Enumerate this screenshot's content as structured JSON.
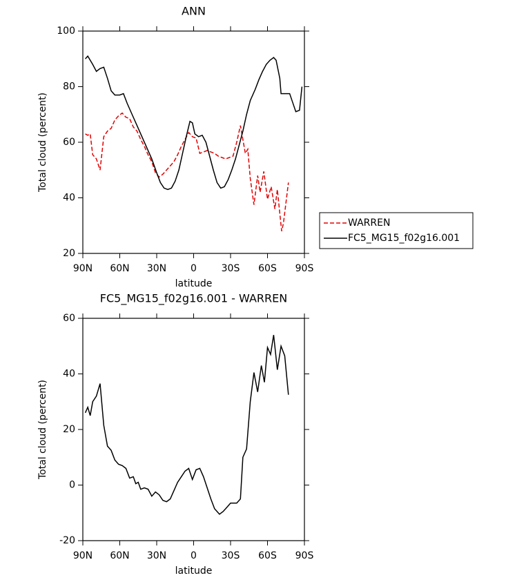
{
  "chart_data": [
    {
      "type": "line",
      "title": "ANN",
      "xlabel": "latitude",
      "ylabel": "Total cloud (percent)",
      "xlim": [
        90,
        -90
      ],
      "xticks": [
        {
          "value": 90,
          "label": "90N"
        },
        {
          "value": 60,
          "label": "60N"
        },
        {
          "value": 30,
          "label": "30N"
        },
        0,
        {
          "value": -30,
          "label": "30S"
        },
        {
          "value": -60,
          "label": "60S"
        },
        {
          "value": -90,
          "label": "90S"
        }
      ],
      "ylim": [
        20,
        100
      ],
      "yticks": [
        20,
        40,
        60,
        80,
        100
      ],
      "legend": "right",
      "series": [
        {
          "name": "WARREN",
          "color": "#e00000",
          "style": "dashed",
          "x": [
            88,
            86,
            84,
            82,
            79,
            76,
            73,
            70,
            67,
            64,
            61,
            58,
            55,
            52,
            49,
            46,
            43,
            40,
            37,
            34,
            31,
            28,
            25,
            22,
            19,
            16,
            13,
            10,
            7,
            4,
            1,
            -2,
            -5,
            -8,
            -11,
            -14,
            -17,
            -20,
            -23,
            -26,
            -29,
            -32,
            -35,
            -38,
            -40,
            -42,
            -44,
            -46,
            -49,
            -52,
            -54,
            -57,
            -60,
            -63,
            -66,
            -68,
            -71.5,
            -73,
            -77
          ],
          "values": [
            63,
            62.5,
            63,
            55.5,
            54,
            50,
            62,
            64,
            65,
            68,
            69.5,
            70.5,
            69,
            68.5,
            65.5,
            64,
            61,
            58.5,
            55.5,
            53,
            49,
            47.5,
            48.5,
            50,
            51.5,
            53,
            55.5,
            58.5,
            61,
            63.5,
            62,
            61.5,
            56,
            56.5,
            57,
            56.5,
            56,
            55,
            54.5,
            54,
            54.5,
            55,
            60,
            66,
            61,
            56,
            57.5,
            47,
            37.5,
            48,
            42,
            49.5,
            39.5,
            44,
            36,
            43,
            28,
            31,
            45.5
          ]
        },
        {
          "name": "FC5_MG15_f02g16.001",
          "color": "#000000",
          "style": "solid",
          "x": [
            88,
            86,
            82,
            79,
            76,
            73,
            70,
            67,
            64,
            60,
            57,
            54,
            50,
            46,
            42,
            38,
            34,
            30,
            27,
            24,
            21,
            18,
            15,
            12,
            9,
            6,
            3,
            1,
            -1,
            -4,
            -7,
            -10,
            -13,
            -16,
            -19,
            -22,
            -25,
            -28,
            -31,
            -34,
            -37,
            -40,
            -43,
            -46,
            -50,
            -53,
            -56,
            -59,
            -62,
            -65,
            -67,
            -70,
            -71,
            -78,
            -83,
            -86,
            -88
          ],
          "values": [
            90,
            91,
            88,
            85.5,
            86.5,
            87,
            83,
            78.5,
            77,
            77,
            77.5,
            74,
            70,
            66,
            62,
            58,
            54,
            49,
            45.5,
            43.5,
            43,
            43.5,
            46,
            50,
            56,
            62,
            67.5,
            67,
            63,
            62,
            62.5,
            60,
            55,
            50,
            45.5,
            43.5,
            44,
            46.5,
            50,
            54,
            59,
            64,
            70,
            75,
            79,
            82.5,
            85.5,
            88,
            89.5,
            90.5,
            89.5,
            83,
            77.5,
            77.5,
            71,
            71.5,
            80
          ]
        }
      ]
    },
    {
      "type": "line",
      "title": "FC5_MG15_f02g16.001 - WARREN",
      "xlabel": "latitude",
      "ylabel": "Total cloud (percent)",
      "xlim": [
        90,
        -90
      ],
      "xticks": [
        {
          "value": 90,
          "label": "90N"
        },
        {
          "value": 60,
          "label": "60N"
        },
        {
          "value": 30,
          "label": "30N"
        },
        0,
        {
          "value": -30,
          "label": "30S"
        },
        {
          "value": -60,
          "label": "60S"
        },
        {
          "value": -90,
          "label": "90S"
        }
      ],
      "ylim": [
        -20,
        60
      ],
      "yticks": [
        -20,
        0,
        20,
        40,
        60
      ],
      "color": "#000000",
      "x": [
        88,
        86,
        84,
        82,
        79,
        76,
        73,
        70,
        67,
        64,
        61,
        58,
        55,
        52,
        49,
        47,
        45,
        43,
        40,
        37,
        34,
        31,
        28,
        25,
        22,
        19,
        16,
        13,
        10,
        7,
        4,
        1,
        -2,
        -5,
        -8,
        -11,
        -14,
        -17,
        -21,
        -24,
        -27,
        -30,
        -33,
        -35,
        -38,
        -40,
        -43,
        -46,
        -49,
        -52,
        -55,
        -57.5,
        -60,
        -62.5,
        -65,
        -68,
        -71,
        -74,
        -77
      ],
      "values": [
        26,
        28,
        25,
        30,
        32,
        36.5,
        21.5,
        14,
        12.5,
        9,
        7.5,
        7,
        6,
        2.5,
        3,
        0.5,
        1,
        -1.5,
        -1,
        -1.5,
        -4,
        -2.5,
        -3.5,
        -5.5,
        -6,
        -5,
        -2,
        1,
        3,
        5,
        6,
        2,
        5.5,
        6,
        3,
        -1,
        -5,
        -8.5,
        -10.5,
        -9.5,
        -8,
        -6.5,
        -6.5,
        -6.5,
        -5,
        10,
        13,
        30,
        40.5,
        33.5,
        43,
        37,
        49.5,
        47,
        54,
        41.5,
        50,
        46.5,
        32.5
      ]
    }
  ]
}
